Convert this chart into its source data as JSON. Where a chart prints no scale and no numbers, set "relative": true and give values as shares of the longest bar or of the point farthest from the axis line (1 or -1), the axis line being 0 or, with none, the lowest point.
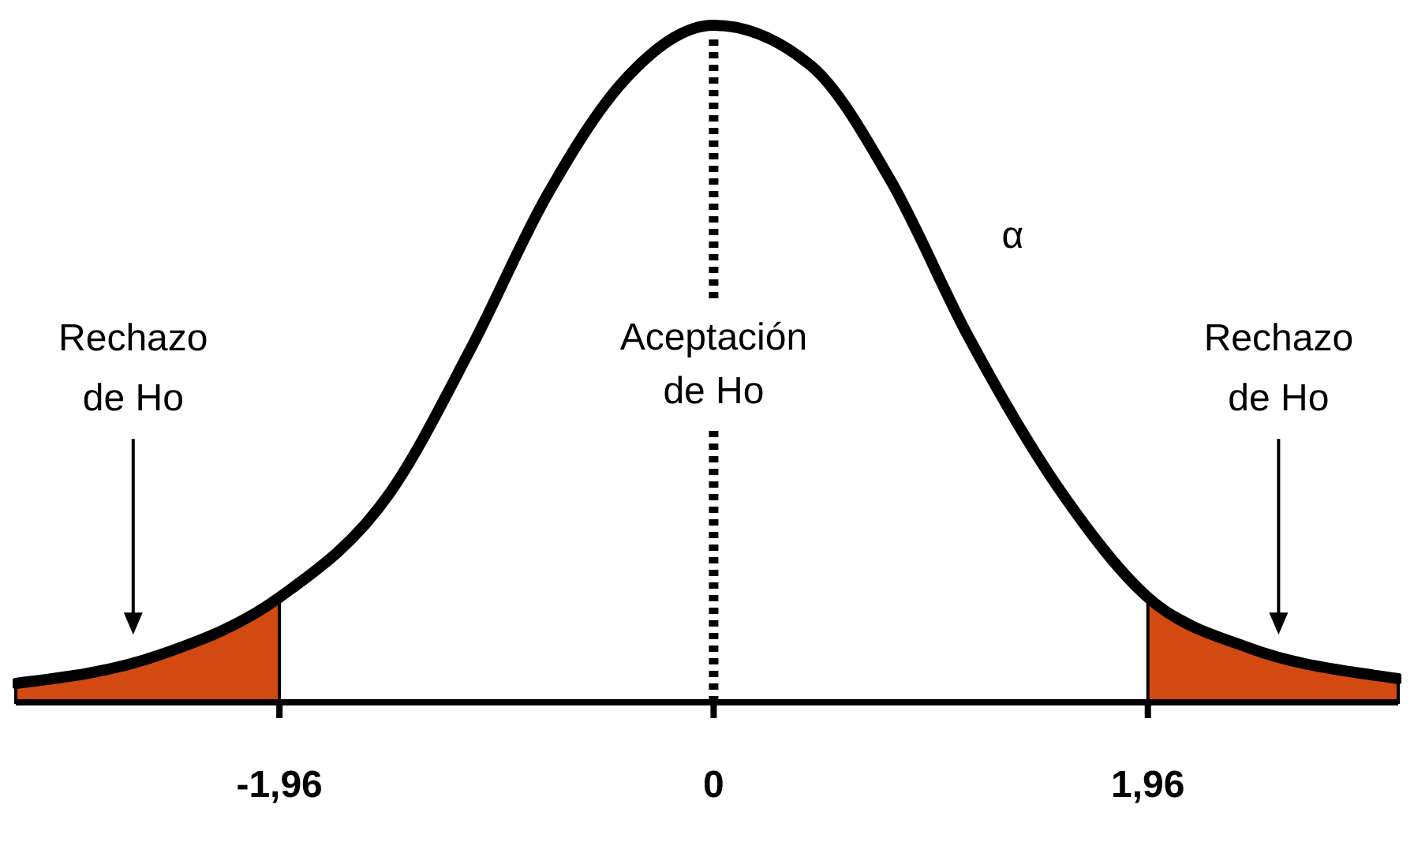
{
  "chart_data": {
    "type": "line",
    "relative": true,
    "x": [
      -3.15,
      -2.5,
      -1.96,
      -1.46,
      -1.1,
      -0.75,
      -0.4,
      0,
      0.44,
      0.8,
      1.15,
      1.57,
      1.96,
      2.42,
      2.98,
      3.09
    ],
    "xlim": [
      -3.15,
      3.09
    ],
    "xticks": [
      {
        "value": -1.96,
        "label": "-1,96"
      },
      {
        "value": 0,
        "label": "0"
      },
      {
        "value": 1.96,
        "label": "1,96"
      }
    ],
    "series": [
      {
        "type": "area",
        "color": "#d24a12",
        "x": [
          -3.15,
          -2.5,
          -1.96
        ],
        "values": [
          0.028,
          0.07,
          0.155
        ]
      },
      {
        "type": "area",
        "color": "#d24a12",
        "x": [
          1.96,
          2.42,
          2.98,
          3.09
        ],
        "values": [
          0.155,
          0.08,
          0.04,
          0.035
        ]
      },
      {
        "type": "line",
        "color": "#000000",
        "values": [
          0.028,
          0.07,
          0.155,
          0.31,
          0.52,
          0.75,
          0.92,
          1,
          0.94,
          0.77,
          0.54,
          0.31,
          0.155,
          0.08,
          0.04,
          0.035
        ]
      }
    ],
    "ref_lines": [
      {
        "axis": "x",
        "value": 0,
        "color": "#000000",
        "line_style": "dotted"
      }
    ],
    "annotations": [
      "Aceptación de Ho",
      "α",
      "Rechazo de Ho",
      "Rechazo de Ho"
    ],
    "marker": "none"
  }
}
